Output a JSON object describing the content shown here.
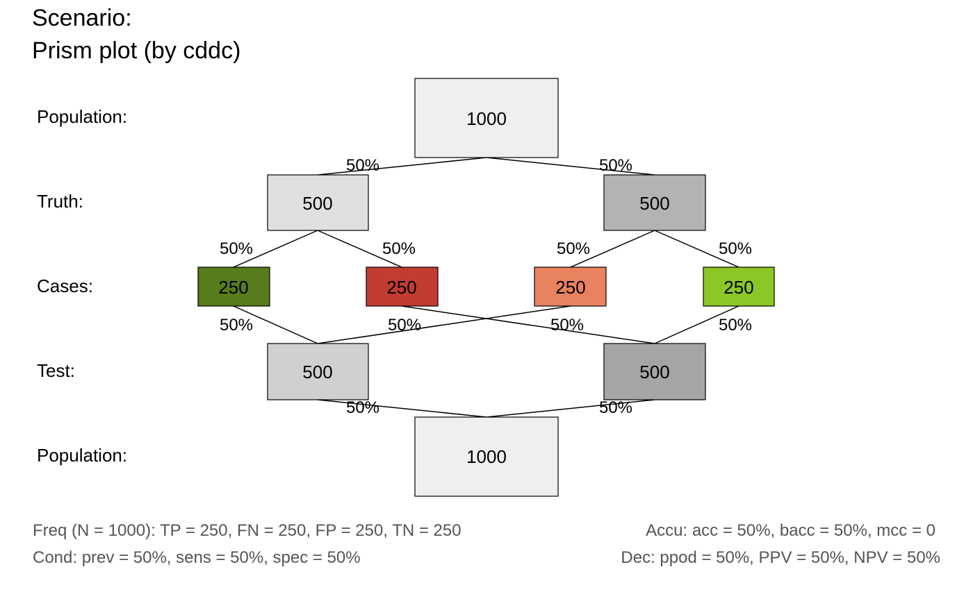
{
  "title": {
    "line1": "Scenario:",
    "line2": "Prism plot (by cddc)"
  },
  "row_labels": [
    "Population:",
    "Truth:",
    "Cases:",
    "Test:",
    "Population:"
  ],
  "nodes": {
    "population_top": {
      "value": "1000",
      "fill": "#efefef"
    },
    "cond_true": {
      "value": "500",
      "fill": "#e0e0e0"
    },
    "cond_false": {
      "value": "500",
      "fill": "#b3b3b3"
    },
    "hi": {
      "value": "250",
      "fill": "#567c1b"
    },
    "mi": {
      "value": "250",
      "fill": "#c23c31"
    },
    "fa": {
      "value": "250",
      "fill": "#e9825e"
    },
    "cr": {
      "value": "250",
      "fill": "#8bc726"
    },
    "dec_pos": {
      "value": "500",
      "fill": "#d0d0d0"
    },
    "dec_neg": {
      "value": "500",
      "fill": "#a5a5a5"
    },
    "population_bottom": {
      "value": "1000",
      "fill": "#efefef"
    }
  },
  "edge_labels": {
    "prev": "50%",
    "one_minus_prev": "50%",
    "sens": "50%",
    "one_minus_sens": "50%",
    "one_minus_spec": "50%",
    "spec": "50%",
    "hi_to_pos": "50%",
    "mi_to_neg": "50%",
    "fa_to_pos": "50%",
    "cr_to_neg": "50%",
    "ppod": "50%",
    "one_minus_ppod": "50%"
  },
  "footer": {
    "freq": "Freq (N = 1000):  TP = 250, FN = 250, FP = 250, TN = 250",
    "cond": "Cond:  prev = 50%, sens = 50%, spec = 50%",
    "accu": "Accu:  acc = 50%, bacc = 50%, mcc = 0",
    "dec": "Dec:  ppod = 50%, PPV = 50%, NPV = 50%"
  }
}
